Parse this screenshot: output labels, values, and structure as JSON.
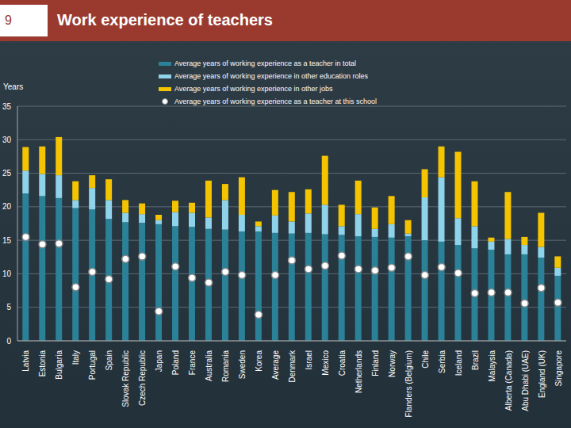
{
  "page_number": "9",
  "chart_data": {
    "type": "bar",
    "title": "Work experience of teachers",
    "y_label": "Years",
    "stacked": true,
    "grid": true,
    "categories": [
      "Latvia",
      "Estonia",
      "Bulgaria",
      "Italy",
      "Portugal",
      "Spain",
      "Slovak Republic",
      "Czech Republic",
      "Japan",
      "Poland",
      "France",
      "Australia",
      "Romania",
      "Sweden",
      "Korea",
      "Average",
      "Denmark",
      "Israel",
      "Mexico",
      "Croatia",
      "Netherlands",
      "Finland",
      "Norway",
      "Flanders (Belgium)",
      "Chile",
      "Serbia",
      "Iceland",
      "Brazil",
      "Malaysia",
      "Alberta (Canada)",
      "Abu Dhabi (UAE)",
      "England (UK)",
      "Singapore"
    ],
    "ylim": [
      0,
      35
    ],
    "yticks": [
      0,
      5,
      10,
      15,
      20,
      25,
      30,
      35
    ],
    "series": [
      {
        "name": "Average years of working experience as a teacher in total",
        "type": "bar",
        "color": "#2b8197",
        "values": [
          22.0,
          21.6,
          21.3,
          19.8,
          19.6,
          18.2,
          17.7,
          17.6,
          17.4,
          17.1,
          17.0,
          16.7,
          16.6,
          16.3,
          16.3,
          16.1,
          16.0,
          16.1,
          15.9,
          15.8,
          15.6,
          15.5,
          15.4,
          15.6,
          15.0,
          14.8,
          14.3,
          13.8,
          13.6,
          12.9,
          12.9,
          12.4,
          9.7
        ]
      },
      {
        "name": "Average years of working experience in other education roles",
        "type": "bar",
        "color": "#8fd3ea",
        "values": [
          3.4,
          3.3,
          3.4,
          1.2,
          3.2,
          2.8,
          1.4,
          1.3,
          0.6,
          2.1,
          2.1,
          1.7,
          4.4,
          2.5,
          0.8,
          2.6,
          1.8,
          2.9,
          4.4,
          1.3,
          3.3,
          1.2,
          2.0,
          0.4,
          6.4,
          9.6,
          4.0,
          3.3,
          1.2,
          2.3,
          1.4,
          1.6,
          1.2
        ]
      },
      {
        "name": "Average years of working experience in other jobs",
        "type": "bar",
        "color": "#f5c400",
        "values": [
          3.5,
          4.1,
          5.7,
          2.8,
          1.9,
          3.1,
          1.9,
          1.6,
          0.8,
          1.7,
          1.5,
          5.5,
          2.4,
          5.6,
          0.7,
          3.8,
          4.4,
          3.6,
          7.3,
          3.2,
          5.0,
          3.2,
          4.2,
          2.0,
          4.2,
          4.6,
          9.9,
          6.7,
          0.6,
          7.0,
          1.2,
          5.1,
          1.7
        ]
      },
      {
        "name": "Average years of working experience as a teacher at this school",
        "type": "scatter",
        "marker": "circle",
        "color": "#ffffff",
        "values": [
          15.5,
          14.4,
          14.5,
          8.0,
          10.3,
          9.2,
          12.2,
          12.6,
          4.4,
          11.1,
          9.4,
          8.7,
          10.3,
          9.8,
          3.9,
          9.8,
          12.0,
          10.7,
          11.2,
          12.7,
          10.7,
          10.5,
          10.9,
          12.6,
          9.8,
          11.0,
          10.1,
          7.1,
          7.2,
          7.2,
          5.6,
          7.9,
          5.7
        ]
      }
    ]
  }
}
